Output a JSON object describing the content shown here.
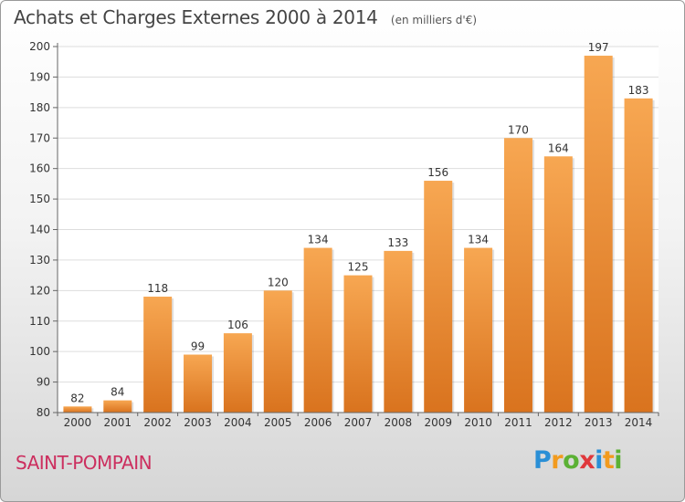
{
  "chart_data": {
    "type": "bar",
    "title": "Achats et Charges Externes 2000 à 2014",
    "subtitle": "(en milliers d'€)",
    "categories": [
      "2000",
      "2001",
      "2002",
      "2003",
      "2004",
      "2005",
      "2006",
      "2007",
      "2008",
      "2009",
      "2010",
      "2011",
      "2012",
      "2013",
      "2014"
    ],
    "values": [
      82,
      84,
      118,
      99,
      106,
      120,
      134,
      125,
      133,
      156,
      134,
      170,
      164,
      197,
      183
    ],
    "ylim": [
      80,
      200
    ],
    "yticks": [
      80,
      90,
      100,
      110,
      120,
      130,
      140,
      150,
      160,
      170,
      180,
      190,
      200
    ],
    "grid": true,
    "legend": "none",
    "bar_color_top": "#f7a752",
    "bar_color_bottom": "#d9731e"
  },
  "footer": {
    "commune": "SAINT-POMPAIN",
    "logo_letters": [
      {
        "char": "P",
        "color": "#2a8fd6"
      },
      {
        "char": "r",
        "color": "#f29b1e"
      },
      {
        "char": "o",
        "color": "#5bb134"
      },
      {
        "char": "x",
        "color": "#e0383c"
      },
      {
        "char": "i",
        "color": "#2a8fd6"
      },
      {
        "char": "t",
        "color": "#f29b1e"
      },
      {
        "char": "i",
        "color": "#5bb134"
      }
    ]
  }
}
